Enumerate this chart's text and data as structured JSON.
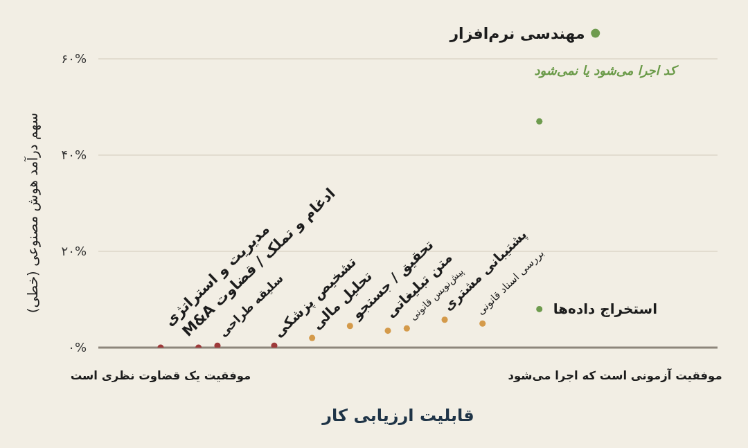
{
  "chart_data": {
    "type": "scatter",
    "xlabel": "قابلیت ارزیابی کار",
    "ylabel": "سهم درآمد هوش مصنوعی (خطی)",
    "categories": [
      "موفقیت یک قضاوت نظری است",
      null,
      null,
      null,
      null,
      null,
      null,
      null,
      null,
      null,
      null,
      null,
      null,
      null,
      null,
      null,
      null,
      null,
      null,
      null,
      null,
      null,
      null,
      null,
      "موفقیت آزمونی است که اجرا می‌شود"
    ],
    "ylim": [
      0,
      60
    ],
    "yticks": [
      {
        "value": 0,
        "label": "۰%"
      },
      {
        "value": 20,
        "label": "۲۰%"
      },
      {
        "value": 40,
        "label": "۴۰%"
      },
      {
        "value": 60,
        "label": "۶۰%"
      }
    ],
    "grid": "y",
    "marker": "circle",
    "series": [
      {
        "name": "مدیریت و استراتژی",
        "color": "#9e3a3a",
        "values": [
          0,
          null,
          null,
          null,
          null,
          null,
          null,
          null,
          null,
          null,
          null,
          null,
          null,
          null,
          null,
          null,
          null,
          null,
          null,
          null,
          null,
          null,
          null,
          null,
          null
        ]
      },
      {
        "name": "ادغام و تملک / قضاوت M&A",
        "color": "#9e3a3a",
        "values": [
          null,
          null,
          0,
          null,
          null,
          null,
          null,
          null,
          null,
          null,
          null,
          null,
          null,
          null,
          null,
          null,
          null,
          null,
          null,
          null,
          null,
          null,
          null,
          null,
          null
        ]
      },
      {
        "name": "سلیقه طراحی",
        "color": "#9e3a3a",
        "values": [
          null,
          null,
          null,
          0.4,
          null,
          null,
          null,
          null,
          null,
          null,
          null,
          null,
          null,
          null,
          null,
          null,
          null,
          null,
          null,
          null,
          null,
          null,
          null,
          null,
          null
        ]
      },
      {
        "name": "تشخیص پزشکی",
        "color": "#9e3a3a",
        "values": [
          null,
          null,
          null,
          null,
          null,
          null,
          0.4,
          null,
          null,
          null,
          null,
          null,
          null,
          null,
          null,
          null,
          null,
          null,
          null,
          null,
          null,
          null,
          null,
          null,
          null
        ]
      },
      {
        "name": "تحلیل مالی",
        "color": "#d49a4a",
        "values": [
          null,
          null,
          null,
          null,
          null,
          null,
          null,
          null,
          2,
          null,
          null,
          null,
          null,
          null,
          null,
          null,
          null,
          null,
          null,
          null,
          null,
          null,
          null,
          null,
          null
        ]
      },
      {
        "name": "تحقیق / جستجو",
        "color": "#d49a4a",
        "values": [
          null,
          null,
          null,
          null,
          null,
          null,
          null,
          null,
          null,
          null,
          4.5,
          null,
          null,
          null,
          null,
          null,
          null,
          null,
          null,
          null,
          null,
          null,
          null,
          null,
          null
        ]
      },
      {
        "name": "متن تبلیغاتی",
        "color": "#d49a4a",
        "values": [
          null,
          null,
          null,
          null,
          null,
          null,
          null,
          null,
          null,
          null,
          null,
          null,
          3.5,
          null,
          null,
          null,
          null,
          null,
          null,
          null,
          null,
          null,
          null,
          null,
          null
        ]
      },
      {
        "name": "پیش‌نویس قانونی",
        "color": "#d49a4a",
        "values": [
          null,
          null,
          null,
          null,
          null,
          null,
          null,
          null,
          null,
          null,
          null,
          null,
          null,
          4,
          null,
          null,
          null,
          null,
          null,
          null,
          null,
          null,
          null,
          null,
          null
        ]
      },
      {
        "name": "پشتیبانی مشتری",
        "color": "#d49a4a",
        "values": [
          null,
          null,
          null,
          null,
          null,
          null,
          null,
          null,
          null,
          null,
          null,
          null,
          null,
          null,
          null,
          5.8,
          null,
          null,
          null,
          null,
          null,
          null,
          null,
          null,
          null
        ]
      },
      {
        "name": "بررسی اسناد قانونی",
        "color": "#d49a4a",
        "values": [
          null,
          null,
          null,
          null,
          null,
          null,
          null,
          null,
          null,
          null,
          null,
          null,
          null,
          null,
          null,
          null,
          null,
          5,
          null,
          null,
          null,
          null,
          null,
          null,
          null
        ]
      },
      {
        "name": "استخراج داده‌ها",
        "color": "#6e9b4e",
        "values": [
          null,
          null,
          null,
          null,
          null,
          null,
          null,
          null,
          null,
          null,
          null,
          null,
          null,
          null,
          null,
          null,
          null,
          null,
          null,
          null,
          8,
          null,
          null,
          null,
          null
        ]
      },
      {
        "name": "مهندسی نرم‌افزار",
        "color": "#6e9b4e",
        "values": [
          null,
          null,
          null,
          null,
          null,
          null,
          null,
          null,
          null,
          null,
          null,
          null,
          null,
          null,
          null,
          null,
          null,
          null,
          null,
          null,
          47,
          null,
          null,
          null,
          null
        ]
      }
    ],
    "annotations": [
      "کد اجرا می‌شود یا نمی‌شود"
    ]
  }
}
